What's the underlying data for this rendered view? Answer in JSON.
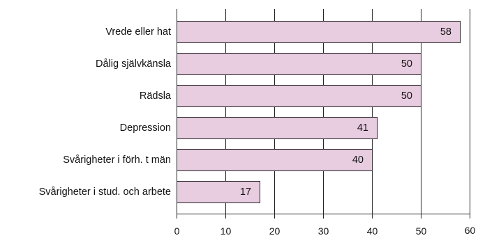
{
  "chart_data": {
    "type": "bar",
    "orientation": "horizontal",
    "categories": [
      "Vrede eller hat",
      "Dålig självkänsla",
      "Rädsla",
      "Depression",
      "Svårigheter i förh. t män",
      "Svårigheter i  stud. och arbete"
    ],
    "values": [
      58,
      50,
      50,
      41,
      40,
      17
    ],
    "xticks": [
      0,
      10,
      20,
      30,
      40,
      50,
      60
    ],
    "xlim": [
      0,
      60
    ],
    "title": "",
    "xlabel": "",
    "ylabel": "",
    "grid": "vertical",
    "bar_color": "#e8cce0",
    "data_labels": "inside-end"
  }
}
